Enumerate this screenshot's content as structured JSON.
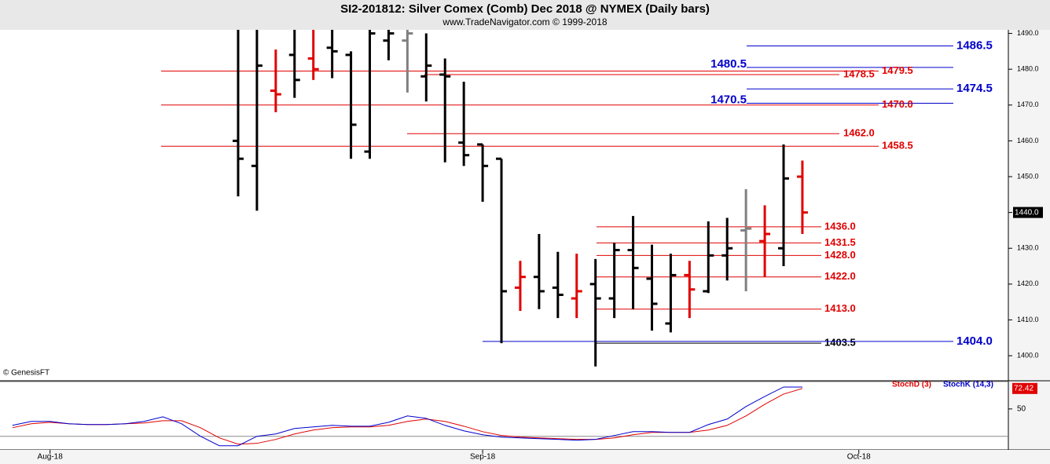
{
  "title": "SI2-201812:  Silver Comex (Comb) Dec 2018 @ NYMEX  (Daily bars)",
  "subtitle": "www.TradeNavigator.com © 1999-2018",
  "chart_data": [
    {
      "type": "ohlc",
      "credit": "© GenesisFT",
      "x": [
        0,
        1,
        2,
        3,
        4,
        5,
        6,
        7,
        8,
        9,
        10,
        11,
        12,
        13,
        14,
        15,
        16,
        17,
        18,
        19,
        20,
        21,
        22,
        23,
        24,
        25,
        26,
        27,
        28,
        29,
        30
      ],
      "open": [
        1460,
        1453,
        1474,
        1484,
        1483,
        1486,
        1484,
        1457,
        1488,
        1488,
        1478,
        1478.5,
        1459.5,
        1459,
        1455,
        1419,
        1422,
        1419,
        1416,
        1420,
        1416,
        1429.5,
        1421.5,
        1409,
        1422.5,
        1418,
        1428,
        1435,
        1432,
        1430,
        1450
      ],
      "high": [
        1491,
        1491,
        1485.5,
        1491,
        1491,
        1491,
        1485,
        1491,
        1491,
        1491,
        1490,
        1483,
        1476.5,
        1459,
        1455,
        1426.5,
        1434,
        1429,
        1428.5,
        1427,
        1431.5,
        1439,
        1431,
        1428.5,
        1426.5,
        1437.5,
        1438.5,
        1446.5,
        1442,
        1459,
        1454.5
      ],
      "low": [
        1444.5,
        1440.5,
        1468,
        1472,
        1477,
        1477.5,
        1455,
        1455,
        1482.5,
        1473.5,
        1471,
        1454,
        1453,
        1443,
        1403.5,
        1412.5,
        1413,
        1410.5,
        1410.5,
        1397,
        1410.5,
        1413,
        1407,
        1406.5,
        1410.5,
        1417.5,
        1421,
        1418,
        1422,
        1425,
        1434
      ],
      "close": [
        1455,
        1481,
        1473,
        1477,
        1480,
        1485,
        1464.5,
        1490,
        1490,
        1490,
        1481,
        1478,
        1456,
        1453,
        1418,
        1422,
        1418,
        1417,
        1418,
        1416,
        1429.5,
        1424.5,
        1414.5,
        1422.5,
        1418.5,
        1428,
        1430,
        1435.5,
        1434,
        1449.5,
        1440
      ],
      "colors": [
        "#000000",
        "#000000",
        "#e00000",
        "#000000",
        "#e00000",
        "#000000",
        "#000000",
        "#000000",
        "#000000",
        "#808080",
        "#000000",
        "#000000",
        "#000000",
        "#000000",
        "#000000",
        "#e00000",
        "#000000",
        "#000000",
        "#e00000",
        "#000000",
        "#000000",
        "#000000",
        "#000000",
        "#000000",
        "#e00000",
        "#000000",
        "#000000",
        "#808080",
        "#e00000",
        "#000000",
        "#e00000"
      ],
      "levels": {
        "values": [
          1486.5,
          1480.5,
          1479.5,
          1478.5,
          1474.5,
          1470.5,
          1470,
          1462,
          1458.5,
          1436,
          1431.5,
          1428,
          1422,
          1413,
          1403.5,
          1404
        ],
        "value_labels": [
          "1486.5",
          "1480.5",
          "1479.5",
          "1478.5",
          "1474.5",
          "1470.5",
          "1470.0",
          "1462.0",
          "1458.5",
          "1436.0",
          "1431.5",
          "1428.0",
          "1422.0",
          "1413.0",
          "1403.5",
          "1404.0"
        ],
        "colors": [
          "#0000cc",
          "#0000cc",
          "#e00000",
          "#e00000",
          "#0000cc",
          "#0000cc",
          "#e00000",
          "#e00000",
          "#e00000",
          "#e00000",
          "#e00000",
          "#e00000",
          "#e00000",
          "#e00000",
          "#000000",
          "#0000cc"
        ]
      },
      "last_price": {
        "value": 1440,
        "label": "1440.0"
      },
      "xlim": [
        -12.66,
        40.95
      ],
      "xticks": [
        {
          "value": -10,
          "label": "Aug-18"
        },
        {
          "value": 13,
          "label": "Sep-18"
        },
        {
          "value": 33,
          "label": "Oct-18"
        }
      ],
      "ylim": [
        1393,
        1491
      ],
      "yticks": [
        {
          "value": 1400,
          "label": "1400.0"
        },
        {
          "value": 1410,
          "label": "1410.0"
        },
        {
          "value": 1420,
          "label": "1420.0"
        },
        {
          "value": 1430,
          "label": "1430.0"
        },
        {
          "value": 1440,
          "label": "1440.0"
        },
        {
          "value": 1450,
          "label": "1450.0"
        },
        {
          "value": 1460,
          "label": "1460.0"
        },
        {
          "value": 1470,
          "label": "1470.0"
        },
        {
          "value": 1480,
          "label": "1480.0"
        },
        {
          "value": 1490,
          "label": "1490.0"
        }
      ]
    },
    {
      "type": "line",
      "x": [
        -12,
        -11,
        -10,
        -9,
        -8,
        -7,
        -6,
        -5,
        -4,
        -3,
        -2,
        -1,
        0,
        1,
        2,
        3,
        4,
        5,
        6,
        7,
        8,
        9,
        10,
        11,
        12,
        13,
        14,
        15,
        16,
        17,
        18,
        19,
        20,
        21,
        22,
        23,
        24,
        25,
        26,
        27,
        28,
        29,
        30
      ],
      "series": [
        {
          "name": "StochD (3)",
          "color": "#e00000",
          "values": [
            29.4,
            33.7,
            35.4,
            33.7,
            32.9,
            32.9,
            33.7,
            34.6,
            37.1,
            37.1,
            29.4,
            18.3,
            11.4,
            12.3,
            16.6,
            22.6,
            26.9,
            29.4,
            30.3,
            30.3,
            32,
            36.3,
            38.9,
            36.3,
            31.1,
            25.1,
            20.9,
            19.1,
            18.3,
            17.4,
            16.6,
            16.6,
            18.3,
            21.7,
            24.3,
            24.3,
            24.3,
            26.9,
            32,
            42.3,
            55.1,
            66.3,
            72.42
          ]
        },
        {
          "name": "StochK (14,3)",
          "color": "#0000cc",
          "values": [
            32,
            36.3,
            36.3,
            33.7,
            32.9,
            32.9,
            33.7,
            36.3,
            41.4,
            33.7,
            20,
            9.7,
            9.7,
            20,
            22.6,
            28.6,
            30.3,
            32,
            31.1,
            31.1,
            35.4,
            42.3,
            39.7,
            32,
            26,
            21.7,
            19.1,
            18.3,
            17.4,
            16.6,
            15.7,
            16.6,
            20.9,
            25.1,
            25.1,
            24.3,
            24.3,
            32.9,
            38.9,
            52.6,
            63.7,
            74,
            74
          ]
        }
      ],
      "levels": [
        20,
        80
      ],
      "ylim": [
        6,
        80
      ],
      "yticks": [
        50
      ]
    }
  ]
}
